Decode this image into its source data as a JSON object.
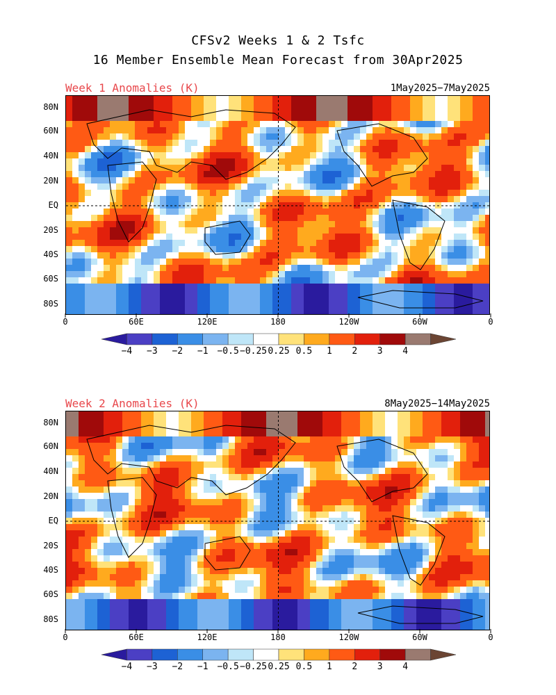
{
  "title_line1": "CFSv2 Weeks 1 & 2 Tsfc",
  "title_line2": "16 Member Ensemble Mean Forecast from 30Apr2025",
  "panels": [
    {
      "label": "Week 1 Anomalies (K)",
      "date": "1May2025−7May2025"
    },
    {
      "label": "Week 2 Anomalies (K)",
      "date": "8May2025−14May2025"
    }
  ],
  "lat_labels": [
    "80N",
    "60N",
    "40N",
    "20N",
    "EQ",
    "20S",
    "40S",
    "60S",
    "80S"
  ],
  "lon_labels": [
    "0",
    "60E",
    "120E",
    "180",
    "120W",
    "60W",
    "0"
  ],
  "colorbar": {
    "labels": [
      "−4",
      "−3",
      "−2",
      "−1",
      "−0.5",
      "−0.25",
      "0.25",
      "0.5",
      "1",
      "2",
      "3",
      "4"
    ],
    "colors": [
      "#2a1b9e",
      "#4b3fc4",
      "#1d62d4",
      "#3a8ee6",
      "#7bb4f0",
      "#bfe6f8",
      "#ffffff",
      "#ffe27a",
      "#ffaa1e",
      "#ff5a14",
      "#e2200c",
      "#a00a0a",
      "#9a7a70",
      "#6b4533"
    ]
  }
}
